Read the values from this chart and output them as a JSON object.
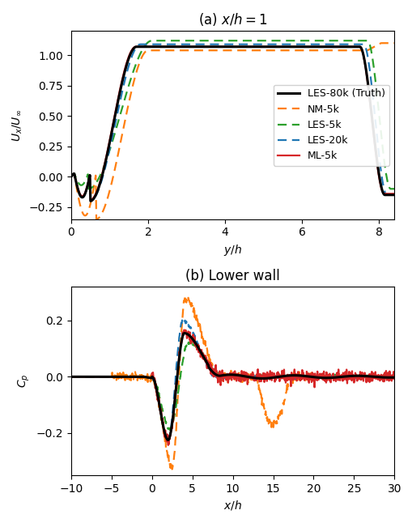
{
  "title_a": "(a) $x/h = 1$",
  "title_b": "(b) Lower wall",
  "xlabel_a": "$y/h$",
  "ylabel_a": "$U_x/U_\\infty$",
  "xlabel_b": "$x/h$",
  "ylabel_b": "$C_p$",
  "xlim_a": [
    0,
    8.4
  ],
  "ylim_a": [
    -0.35,
    1.2
  ],
  "xlim_b": [
    -10,
    30
  ],
  "ylim_b": [
    -0.35,
    0.32
  ],
  "xticks_a": [
    0,
    2,
    4,
    6,
    8
  ],
  "yticks_a": [
    -0.25,
    0.0,
    0.25,
    0.5,
    0.75,
    1.0
  ],
  "xticks_b": [
    -10,
    -5,
    0,
    5,
    10,
    15,
    20,
    25,
    30
  ],
  "yticks_b": [
    -0.2,
    0.0,
    0.2
  ],
  "colors": {
    "truth": "#000000",
    "nm5k": "#ff7f0e",
    "les5k": "#2ca02c",
    "les20k": "#1f77b4",
    "ml5k": "#d62728"
  },
  "legend_labels": [
    "LES-80k (Truth)",
    "NM-5k",
    "LES-5k",
    "LES-20k",
    "ML-5k"
  ],
  "figsize": [
    5.1,
    6.46
  ],
  "dpi": 100
}
